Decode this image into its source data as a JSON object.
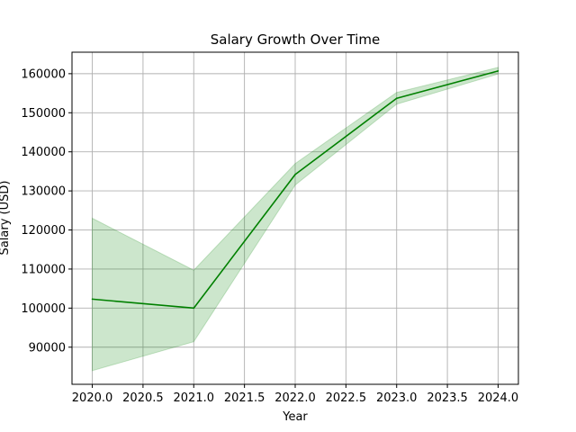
{
  "chart_data": {
    "type": "line",
    "title": "Salary Growth Over Time",
    "xlabel": "Year",
    "ylabel": "Salary (USD)",
    "xlim": [
      2019.8,
      2024.2
    ],
    "ylim": [
      80500,
      165500
    ],
    "x_ticks": [
      2020.0,
      2020.5,
      2021.0,
      2021.5,
      2022.0,
      2022.5,
      2023.0,
      2023.5,
      2024.0
    ],
    "x_tick_labels": [
      "2020.0",
      "2020.5",
      "2021.0",
      "2021.5",
      "2022.0",
      "2022.5",
      "2023.0",
      "2023.5",
      "2024.0"
    ],
    "y_ticks": [
      90000,
      100000,
      110000,
      120000,
      130000,
      140000,
      150000,
      160000
    ],
    "y_tick_labels": [
      "90000",
      "100000",
      "110000",
      "120000",
      "130000",
      "140000",
      "150000",
      "160000"
    ],
    "grid": true,
    "series": [
      {
        "x": [
          2020,
          2021,
          2022,
          2023,
          2024
        ],
        "y": [
          102300,
          100000,
          134200,
          153700,
          160700
        ],
        "lower": [
          84000,
          91400,
          131500,
          152200,
          159900
        ],
        "upper": [
          123000,
          109700,
          137000,
          155200,
          161600
        ],
        "color": "#008000",
        "band_color": "#008000"
      }
    ]
  }
}
